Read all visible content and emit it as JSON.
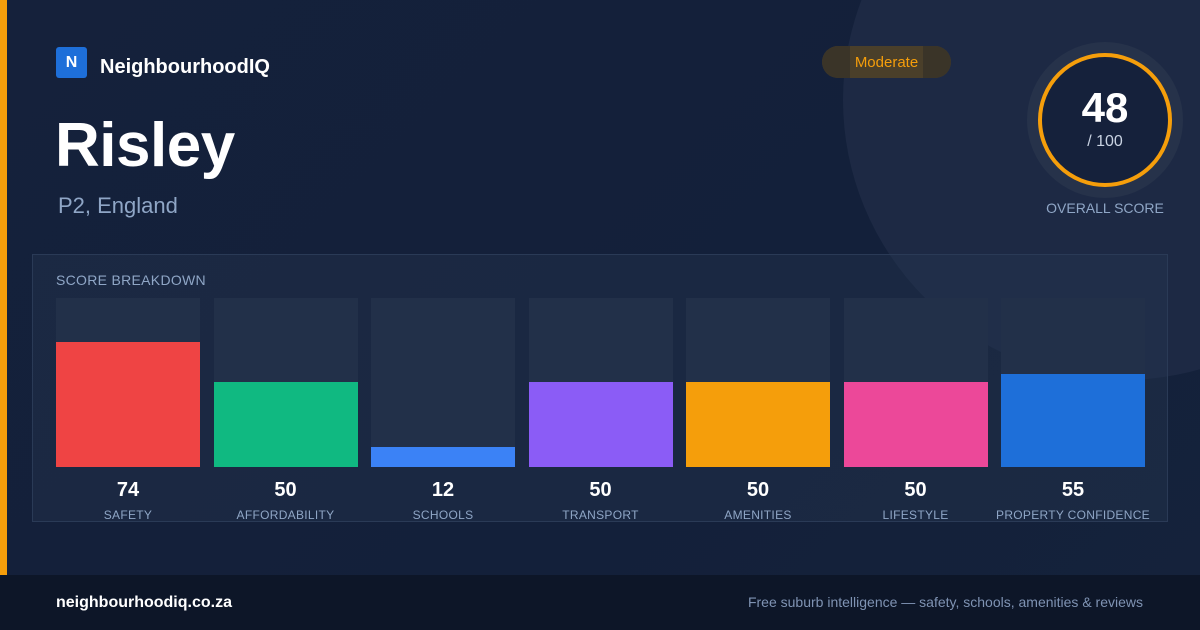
{
  "brand": {
    "logo_letter": "N",
    "name": "NeighbourhoodIQ"
  },
  "place": {
    "name": "Risley",
    "region": "P2, England"
  },
  "rating": {
    "label": "Moderate"
  },
  "overall": {
    "score": "48",
    "max": "/ 100",
    "label": "OVERALL SCORE"
  },
  "breakdown": {
    "title": "SCORE BREAKDOWN"
  },
  "colors": {
    "accent": "#f59e0b",
    "brand": "#1e6fd9"
  },
  "chart_data": {
    "type": "bar",
    "title": "SCORE BREAKDOWN",
    "ylim": [
      0,
      100
    ],
    "categories": [
      "SAFETY",
      "AFFORDABILITY",
      "SCHOOLS",
      "TRANSPORT",
      "AMENITIES",
      "LIFESTYLE",
      "PROPERTY CONFIDENCE"
    ],
    "values": [
      74,
      50,
      12,
      50,
      50,
      50,
      55
    ],
    "colors": [
      "#ef4444",
      "#10b981",
      "#3b82f6",
      "#8b5cf6",
      "#f59e0b",
      "#ec4899",
      "#1e6fd9"
    ]
  },
  "footer": {
    "site": "neighbourhoodiq.co.za",
    "tagline": "Free suburb intelligence — safety, schools, amenities & reviews"
  }
}
